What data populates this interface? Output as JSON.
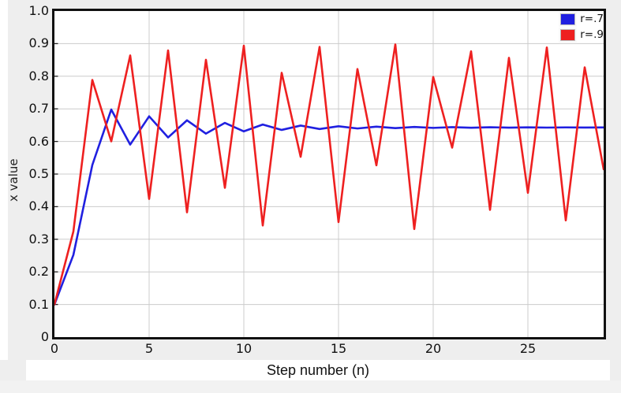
{
  "page": {
    "widget_background": "#eeeeee",
    "plot_background": "#ffffff",
    "frame_color": "#111111",
    "grid_color": "#cccccc"
  },
  "chart_data": {
    "type": "line",
    "title": "",
    "xlabel": "Step number (n)",
    "ylabel": "x value",
    "xlim": [
      0,
      29
    ],
    "ylim": [
      0,
      1.0
    ],
    "grid": true,
    "legend_position": "top-right",
    "x_ticks": [
      0,
      5,
      10,
      15,
      20,
      25
    ],
    "y_ticks": [
      "1.0",
      "0.9",
      "0.8",
      "0.7",
      "0.6",
      "0.5",
      "0.4",
      "0.3",
      "0.2",
      "0.1",
      "0"
    ],
    "x": [
      0,
      1,
      2,
      3,
      4,
      5,
      6,
      7,
      8,
      9,
      10,
      11,
      12,
      13,
      14,
      15,
      16,
      17,
      18,
      19,
      20,
      21,
      22,
      23,
      24,
      25,
      26,
      27,
      28,
      29
    ],
    "series": [
      {
        "name": "r=.7",
        "color": "#2020e0",
        "values": [
          0.1,
          0.252,
          0.5278,
          0.6978,
          0.5904,
          0.6771,
          0.6122,
          0.6648,
          0.624,
          0.657,
          0.631,
          0.6519,
          0.6354,
          0.6487,
          0.6381,
          0.6466,
          0.6398,
          0.6453,
          0.6409,
          0.6444,
          0.6416,
          0.6438,
          0.6421,
          0.6435,
          0.6424,
          0.6433,
          0.6425,
          0.6431,
          0.6426,
          0.643
        ]
      },
      {
        "name": "r=.9",
        "color": "#ee2020",
        "values": [
          0.1,
          0.324,
          0.7885,
          0.6004,
          0.8637,
          0.4238,
          0.8791,
          0.3827,
          0.8505,
          0.4578,
          0.8936,
          0.3423,
          0.8104,
          0.553,
          0.8899,
          0.3528,
          0.822,
          0.5268,
          0.8974,
          0.3314,
          0.7977,
          0.581,
          0.8764,
          0.3901,
          0.8565,
          0.4425,
          0.8881,
          0.3578,
          0.8272,
          0.5147
        ]
      }
    ]
  }
}
